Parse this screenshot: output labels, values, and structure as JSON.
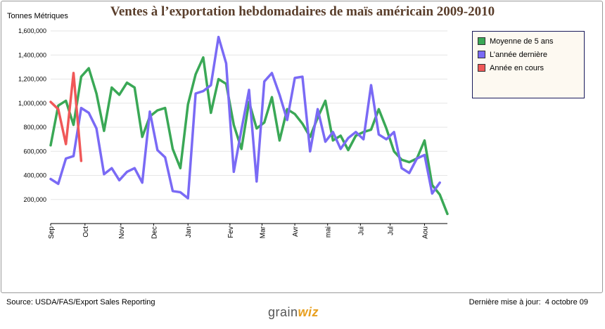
{
  "chart_data": {
    "type": "line",
    "title": "Ventes à l’exportation hebdomadaires de maïs américain 2009-2010",
    "ylabel": "Tonnes Métriques",
    "ylim": [
      0,
      1600000
    ],
    "yticks": [
      200000,
      400000,
      600000,
      800000,
      1000000,
      1200000,
      1400000,
      1600000
    ],
    "ytick_labels": [
      "200,000",
      "400,000",
      "600,000",
      "800,000",
      "1,000,000",
      "1,200,000",
      "1,400,000",
      "1,600,000"
    ],
    "x_weeks": 52,
    "month_labels": [
      {
        "label": "Sep",
        "week": 0
      },
      {
        "label": "Oct",
        "week": 4.5
      },
      {
        "label": "Nov",
        "week": 9.2
      },
      {
        "label": "Dec",
        "week": 13.5
      },
      {
        "label": "Jan",
        "week": 18
      },
      {
        "label": "Fev",
        "week": 23.5
      },
      {
        "label": "Mar",
        "week": 27.7
      },
      {
        "label": "Avr",
        "week": 32
      },
      {
        "label": "mai",
        "week": 36.3
      },
      {
        "label": "Jui",
        "week": 40.6
      },
      {
        "label": "Jul",
        "week": 44.5
      },
      {
        "label": "Aou",
        "week": 49
      }
    ],
    "series": [
      {
        "name": "Moyenne de 5 ans",
        "color": "#3aa856",
        "values": [
          650000,
          980000,
          1020000,
          820000,
          1220000,
          1290000,
          1080000,
          770000,
          1130000,
          1070000,
          1170000,
          1130000,
          720000,
          890000,
          940000,
          960000,
          620000,
          460000,
          990000,
          1240000,
          1380000,
          920000,
          1200000,
          1160000,
          820000,
          620000,
          1010000,
          790000,
          840000,
          1050000,
          690000,
          950000,
          910000,
          830000,
          720000,
          880000,
          1020000,
          690000,
          730000,
          610000,
          730000,
          760000,
          780000,
          950000,
          790000,
          600000,
          530000,
          510000,
          540000,
          690000,
          320000,
          240000,
          80000
        ]
      },
      {
        "name": "L’année dernière",
        "color": "#7a6af5",
        "values": [
          370000,
          330000,
          540000,
          560000,
          960000,
          920000,
          790000,
          410000,
          460000,
          360000,
          430000,
          460000,
          340000,
          930000,
          610000,
          550000,
          270000,
          260000,
          210000,
          1080000,
          1100000,
          1150000,
          1550000,
          1330000,
          430000,
          780000,
          1110000,
          350000,
          1180000,
          1250000,
          1070000,
          860000,
          1210000,
          1220000,
          600000,
          950000,
          680000,
          760000,
          620000,
          710000,
          760000,
          700000,
          1150000,
          740000,
          700000,
          760000,
          460000,
          420000,
          540000,
          570000,
          250000,
          340000
        ]
      },
      {
        "name": "Année en cours",
        "color": "#f05858",
        "values": [
          1010000,
          950000,
          660000,
          1250000,
          520000
        ]
      }
    ]
  },
  "footer": {
    "source": "Source: USDA/FAS/Export Sales Reporting",
    "updated_label": "Dernière mise à jour:",
    "updated_date": "4 octobre 09",
    "logo_part1": "grain",
    "logo_part2": "wiz"
  }
}
